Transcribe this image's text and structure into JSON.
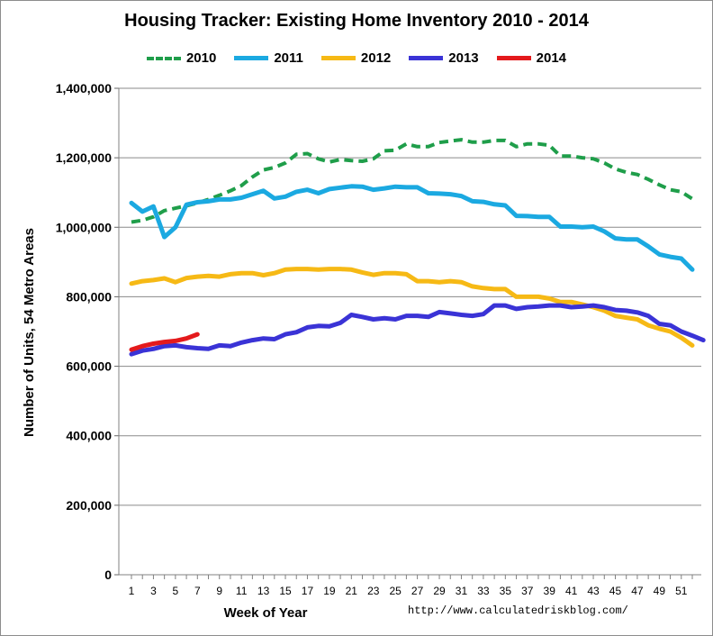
{
  "chart_data": {
    "type": "line",
    "title": "Housing Tracker: Existing Home Inventory 2010 - 2014",
    "xlabel": "Week of Year",
    "ylabel": "Number of Units, 54 Metro Areas",
    "xlim": [
      1,
      52
    ],
    "ylim": [
      0,
      1400000
    ],
    "x_ticks": [
      1,
      3,
      5,
      7,
      9,
      11,
      13,
      15,
      17,
      19,
      21,
      23,
      25,
      27,
      29,
      31,
      33,
      35,
      37,
      39,
      41,
      43,
      45,
      47,
      49,
      51
    ],
    "y_ticks": [
      0,
      200000,
      400000,
      600000,
      800000,
      1000000,
      1200000,
      1400000
    ],
    "y_tick_labels": [
      "0",
      "200,000",
      "400,000",
      "600,000",
      "800,000",
      "1,000,000",
      "1,200,000",
      "1,400,000"
    ],
    "grid": "horizontal",
    "legend_position": "top-center",
    "source": "http://www.calculatedriskblog.com/",
    "series": [
      {
        "name": "2010",
        "color": "#1f9e4a",
        "dashed": true,
        "values": [
          1015000,
          1020000,
          1030000,
          1048000,
          1055000,
          1062000,
          1070000,
          1080000,
          1092000,
          1105000,
          1120000,
          1145000,
          1165000,
          1172000,
          1185000,
          1210000,
          1212000,
          1197000,
          1188000,
          1195000,
          1192000,
          1190000,
          1197000,
          1220000,
          1222000,
          1240000,
          1232000,
          1232000,
          1244000,
          1248000,
          1252000,
          1245000,
          1245000,
          1250000,
          1250000,
          1232000,
          1240000,
          1240000,
          1236000,
          1205000,
          1205000,
          1200000,
          1197000,
          1185000,
          1168000,
          1158000,
          1152000,
          1138000,
          1122000,
          1108000,
          1102000,
          1082000
        ]
      },
      {
        "name": "2011",
        "color": "#1ba9e1",
        "dashed": false,
        "values": [
          1070000,
          1045000,
          1060000,
          972000,
          1000000,
          1065000,
          1072000,
          1075000,
          1080000,
          1080000,
          1085000,
          1095000,
          1105000,
          1083000,
          1088000,
          1102000,
          1108000,
          1098000,
          1110000,
          1114000,
          1118000,
          1117000,
          1108000,
          1112000,
          1117000,
          1115000,
          1115000,
          1098000,
          1097000,
          1095000,
          1090000,
          1075000,
          1073000,
          1066000,
          1063000,
          1033000,
          1032000,
          1030000,
          1030000,
          1002000,
          1002000,
          1000000,
          1002000,
          988000,
          968000,
          965000,
          965000,
          945000,
          922000,
          915000,
          910000,
          878000
        ]
      },
      {
        "name": "2012",
        "color": "#f6b915",
        "dashed": false,
        "values": [
          838000,
          845000,
          848000,
          853000,
          842000,
          854000,
          858000,
          860000,
          858000,
          865000,
          868000,
          868000,
          862000,
          868000,
          878000,
          880000,
          880000,
          878000,
          880000,
          880000,
          878000,
          870000,
          863000,
          868000,
          868000,
          865000,
          845000,
          845000,
          842000,
          845000,
          842000,
          830000,
          825000,
          822000,
          822000,
          800000,
          800000,
          800000,
          795000,
          785000,
          785000,
          778000,
          770000,
          760000,
          745000,
          740000,
          735000,
          718000,
          708000,
          700000,
          682000,
          660000
        ]
      },
      {
        "name": "2013",
        "color": "#3a33d6",
        "dashed": false,
        "values": [
          635000,
          645000,
          650000,
          658000,
          660000,
          655000,
          652000,
          650000,
          660000,
          658000,
          668000,
          675000,
          680000,
          678000,
          692000,
          698000,
          712000,
          716000,
          715000,
          725000,
          748000,
          742000,
          735000,
          738000,
          735000,
          745000,
          745000,
          742000,
          756000,
          752000,
          748000,
          745000,
          750000,
          775000,
          775000,
          765000,
          770000,
          772000,
          775000,
          775000,
          770000,
          772000,
          775000,
          770000,
          762000,
          760000,
          755000,
          745000,
          722000,
          718000,
          700000,
          688000,
          675000
        ]
      },
      {
        "name": "2014",
        "color": "#e41a1c",
        "dashed": false,
        "values": [
          648000,
          658000,
          665000,
          670000,
          673000,
          680000,
          692000
        ]
      }
    ]
  }
}
